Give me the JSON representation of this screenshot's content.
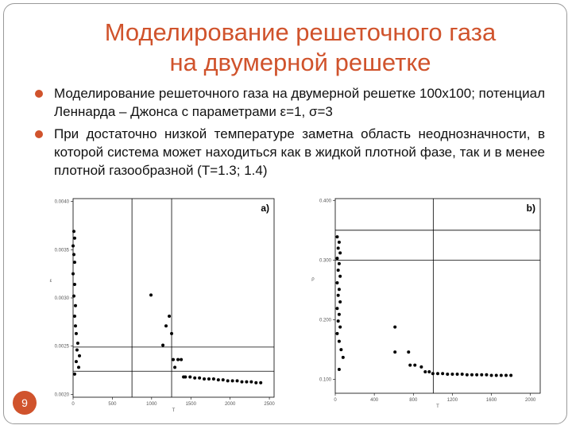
{
  "header": {
    "title_lines": [
      "Моделирование решеточного газа",
      "на двумерной решетке"
    ]
  },
  "bullets": [
    "Моделирование решеточного газа на двумерной решетке 100x100; потенциал Леннарда – Джонса с параметрами ε=1, σ=3",
    "При достаточно низкой температуре заметна область неоднозначности, в которой система может находиться как в жидкой плотной фазе, так и в менее плотной газообразной (T=1.3; 1.4)"
  ],
  "slide_number": "9",
  "chart_data": [
    {
      "type": "scatter",
      "panel_label": "a)",
      "x_label": "T",
      "y_label": "ε",
      "color": "#000000",
      "xlim": [
        0,
        2560
      ],
      "ylim": [
        0.00197,
        0.00403
      ],
      "xticks": [
        0,
        500,
        1000,
        1500,
        2000,
        2500
      ],
      "yticks": [
        {
          "value": 0.002,
          "label": "0.0020"
        },
        {
          "value": 0.0025,
          "label": "0.0025"
        },
        {
          "value": 0.003,
          "label": "0.0030"
        },
        {
          "value": 0.0035,
          "label": "0.0035"
        },
        {
          "value": 0.004,
          "label": "0.0040"
        }
      ],
      "vlines": [
        750,
        1255
      ],
      "hlines": [
        0.00249,
        0.00224
      ],
      "x": [
        10,
        20,
        0,
        10,
        20,
        0,
        20,
        10,
        30,
        20,
        30,
        40,
        60,
        50,
        81,
        40,
        71,
        20,
        992,
        1144,
        1184,
        1225,
        1255,
        1275,
        1296,
        1336,
        1377,
        1407,
        1430,
        1490,
        1550,
        1610,
        1670,
        1730,
        1790,
        1850,
        1910,
        1970,
        2030,
        2090,
        2150,
        2210,
        2270,
        2330,
        2390
      ],
      "y": [
        0.00369,
        0.00362,
        0.00354,
        0.00345,
        0.00337,
        0.00325,
        0.00314,
        0.00302,
        0.00292,
        0.00281,
        0.00271,
        0.00263,
        0.00253,
        0.00246,
        0.0024,
        0.00234,
        0.00228,
        0.00221,
        0.00303,
        0.00251,
        0.00271,
        0.00281,
        0.00263,
        0.00236,
        0.00228,
        0.00236,
        0.00236,
        0.00218,
        0.00218,
        0.00218,
        0.00217,
        0.00217,
        0.00216,
        0.00216,
        0.00216,
        0.00215,
        0.00215,
        0.00214,
        0.00214,
        0.00214,
        0.00213,
        0.00213,
        0.00213,
        0.00212,
        0.00212
      ]
    },
    {
      "type": "scatter",
      "panel_label": "b)",
      "x_label": "T",
      "y_label": "ρ",
      "color": "#000000",
      "xlim": [
        0,
        2100
      ],
      "ylim": [
        0.077,
        0.403
      ],
      "xticks": [
        0,
        400,
        800,
        1200,
        1600,
        2000
      ],
      "yticks": [
        {
          "value": 0.1,
          "label": "0.100"
        },
        {
          "value": 0.2,
          "label": "0.200"
        },
        {
          "value": 0.3,
          "label": "0.300"
        },
        {
          "value": 0.4,
          "label": "0.400"
        }
      ],
      "vlines": [
        1004
      ],
      "hlines": [
        0.35,
        0.3
      ],
      "x": [
        20,
        40,
        30,
        50,
        20,
        40,
        30,
        50,
        20,
        40,
        30,
        50,
        20,
        40,
        30,
        50,
        20,
        40,
        60,
        80,
        40,
        612,
        612,
        751,
        767,
        816,
        882,
        922,
        963,
        1000,
        1050,
        1100,
        1150,
        1200,
        1250,
        1300,
        1350,
        1400,
        1450,
        1500,
        1550,
        1600,
        1650,
        1700,
        1750,
        1800
      ],
      "y": [
        0.339,
        0.33,
        0.32,
        0.312,
        0.303,
        0.294,
        0.283,
        0.273,
        0.262,
        0.251,
        0.241,
        0.23,
        0.219,
        0.209,
        0.198,
        0.188,
        0.177,
        0.164,
        0.15,
        0.137,
        0.117,
        0.188,
        0.146,
        0.146,
        0.124,
        0.124,
        0.121,
        0.113,
        0.113,
        0.11,
        0.11,
        0.11,
        0.109,
        0.109,
        0.109,
        0.109,
        0.108,
        0.108,
        0.108,
        0.108,
        0.108,
        0.107,
        0.107,
        0.107,
        0.107,
        0.107
      ]
    }
  ]
}
